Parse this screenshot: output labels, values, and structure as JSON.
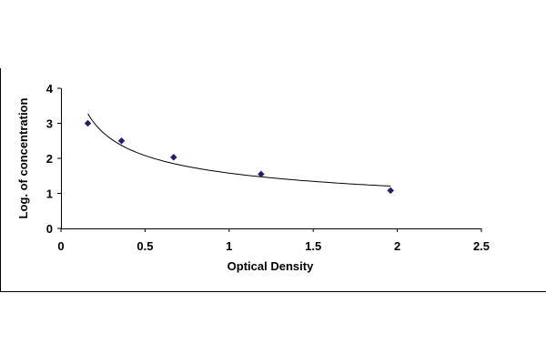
{
  "chart_data": {
    "type": "scatter",
    "title": "",
    "xlabel": "Optical Density",
    "ylabel": "Log. of concentration",
    "xlim": [
      0,
      2.5
    ],
    "ylim": [
      0,
      4
    ],
    "xticks": [
      "0",
      "0.5",
      "1",
      "1.5",
      "2",
      "2.5"
    ],
    "yticks": [
      "0",
      "1",
      "2",
      "3",
      "4"
    ],
    "grid": false,
    "legend": "none",
    "trendline": "power",
    "series": [
      {
        "x": [
          0.16,
          0.36,
          0.67,
          1.19,
          1.96
        ],
        "y": [
          3.0,
          2.5,
          2.03,
          1.55,
          1.08
        ],
        "marker": "diamond",
        "color": "#1f1f6e"
      }
    ]
  }
}
